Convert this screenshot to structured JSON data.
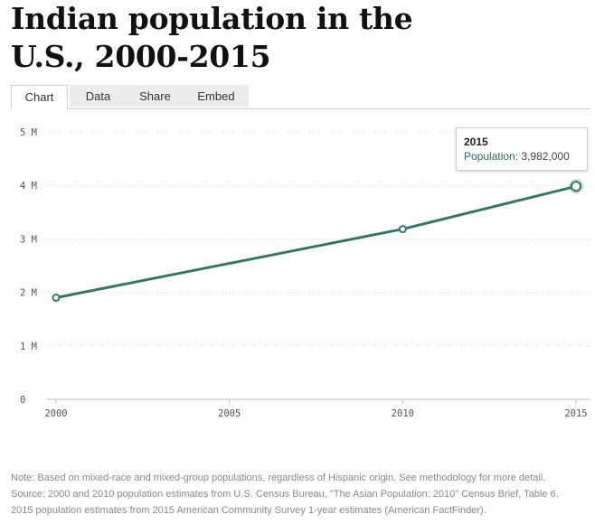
{
  "header": {
    "title_line1": "Indian population in the",
    "title_line2": "U.S., 2000-2015"
  },
  "tabs": [
    {
      "label": "Chart",
      "active": true
    },
    {
      "label": "Data",
      "active": false
    },
    {
      "label": "Share",
      "active": false
    },
    {
      "label": "Embed",
      "active": false
    }
  ],
  "chart_data": {
    "type": "line",
    "title": "Indian population in the U.S., 2000-2015",
    "xlabel": "",
    "ylabel": "",
    "x": [
      2000,
      2010,
      2015
    ],
    "series": [
      {
        "name": "Population",
        "values": [
          1900000,
          3183000,
          3982000
        ]
      }
    ],
    "xlim": [
      2000,
      2015
    ],
    "ylim": [
      0,
      5000000
    ],
    "x_ticks": [
      2000,
      2005,
      2010,
      2015
    ],
    "x_tick_labels": [
      "2000",
      "2005",
      "2010",
      "2015"
    ],
    "y_ticks": [
      0,
      1000000,
      2000000,
      3000000,
      4000000,
      5000000
    ],
    "y_tick_labels": [
      "0",
      "1 M",
      "2 M",
      "3 M",
      "4 M",
      "5 M"
    ],
    "grid": true,
    "line_color": "#3a7563"
  },
  "tooltip": {
    "year": "2015",
    "label": "Population:",
    "value": "3,982,000"
  },
  "notes": {
    "note": "Note: Based on mixed-race and mixed-group populations, regardless of Hispanic origin. See methodology for more detail.",
    "source": "Source: 2000 and 2010 population estimates from U.S. Census Bureau, \"The Asian Population: 2010\" Census Brief, Table 6.",
    "source2": "2015 population estimates from 2015 American Community Survey 1-year estimates (American FactFinder)."
  }
}
